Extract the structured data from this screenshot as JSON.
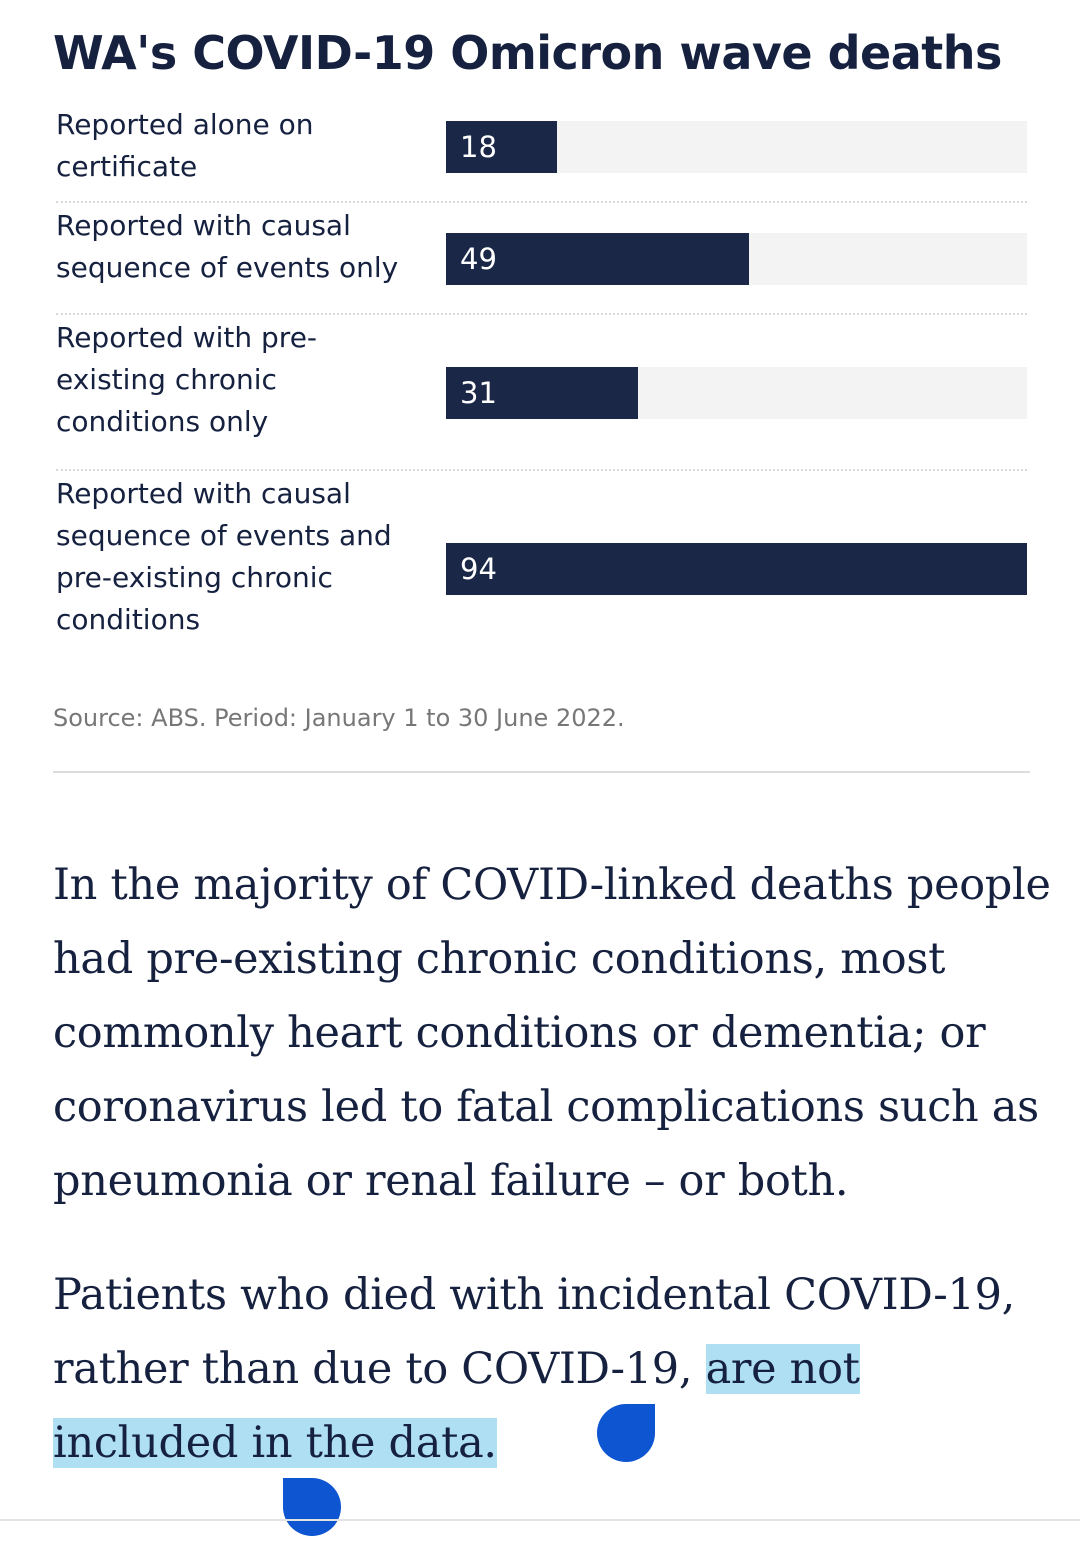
{
  "chart_data": {
    "type": "bar",
    "orientation": "horizontal",
    "title": "WA's COVID-19 Omicron wave deaths",
    "categories": [
      "Reported alone on certificate",
      "Reported with causal sequence of events only",
      "Reported with pre-existing chronic conditions only",
      "Reported with causal sequence of events and pre-existing chronic conditions"
    ],
    "values": [
      18,
      49,
      31,
      94
    ],
    "xlim": [
      0,
      94
    ],
    "grid": false,
    "legend": "none",
    "source": "Source: ABS. Period: January 1 to 30 June 2022.",
    "colors": {
      "bar": "#1b2747",
      "track": "#f3f3f3",
      "title": "#15213f"
    }
  },
  "article": {
    "paragraph1": "In the majority of COVID-linked deaths people had pre-existing chronic conditions, most commonly heart conditions or dementia; or coronavirus led to fatal complications such as pneumonia or renal failure – or both.",
    "paragraph2_plain": "Patients who died with incidental COVID-19, rather than due to COVID-19, ",
    "paragraph2_selected": "are not included in the data.",
    "selection_color": "#aedff3",
    "handle_color": "#0d55d1"
  }
}
